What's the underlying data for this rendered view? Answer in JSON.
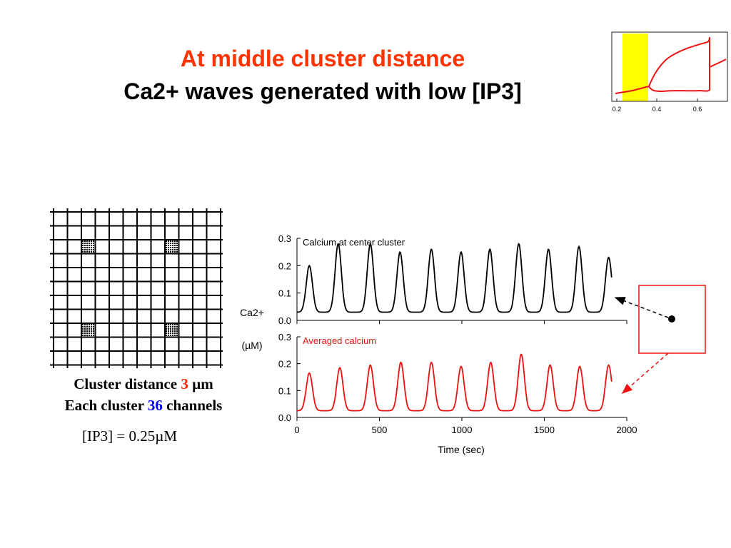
{
  "slide": {
    "title_line1": "At middle cluster distance",
    "title_line2": "Ca2+ waves generated with low [IP3]",
    "caption": {
      "line1_prefix": "Cluster distance ",
      "line1_value": "3",
      "line1_unit": " µm",
      "line2_prefix": "Each cluster ",
      "line2_value": "36",
      "line2_unit": " channels"
    },
    "formula": "[IP3] = 0.25µM"
  },
  "chart_data": [
    {
      "type": "line",
      "title": "Calcium at center cluster",
      "ylabel": "Ca2+",
      "ylabel_unit": "(µM)",
      "ylim": [
        0,
        0.3
      ],
      "yticks": [
        "0.0",
        "0.1",
        "0.2",
        "0.3"
      ],
      "xlim": [
        0,
        2000
      ],
      "color": "#000000",
      "series": [
        {
          "peaks_x": [
            75,
            250,
            445,
            625,
            815,
            995,
            1170,
            1345,
            1525,
            1710,
            1890
          ],
          "peaks_y": [
            0.2,
            0.28,
            0.28,
            0.25,
            0.26,
            0.25,
            0.26,
            0.28,
            0.26,
            0.27,
            0.23
          ],
          "baseline_y": 0.03
        }
      ]
    },
    {
      "type": "line",
      "title": "Averaged calcium",
      "ylim": [
        0,
        0.3
      ],
      "yticks": [
        "0.0",
        "0.1",
        "0.2",
        "0.3"
      ],
      "xlim": [
        0,
        2000
      ],
      "xticks": [
        "0",
        "500",
        "1000",
        "1500",
        "2000"
      ],
      "xlabel": "Time  (sec)",
      "color": "#ee1111",
      "series": [
        {
          "peaks_x": [
            75,
            260,
            445,
            630,
            815,
            995,
            1175,
            1360,
            1535,
            1715,
            1890
          ],
          "peaks_y": [
            0.165,
            0.185,
            0.195,
            0.205,
            0.205,
            0.19,
            0.205,
            0.235,
            0.195,
            0.19,
            0.195
          ],
          "baseline_y": 0.025
        }
      ]
    },
    {
      "type": "line",
      "inset": true,
      "xticks": [
        "0.2",
        "0.4",
        "0.6"
      ],
      "highlight_band": [
        0.25,
        0.37
      ],
      "highlight_color": "#ffff00",
      "color": "#ee1111"
    }
  ],
  "grid_diagram": {
    "lines": 13,
    "clusters": 4
  }
}
